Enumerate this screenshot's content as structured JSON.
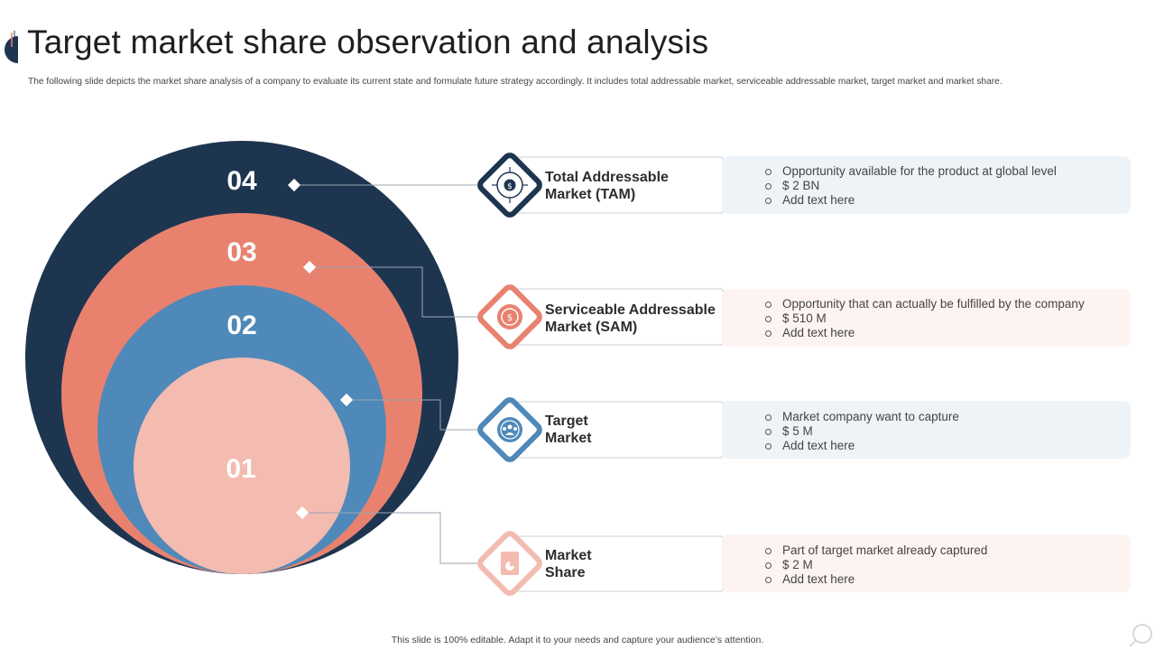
{
  "title": "Target market share observation and analysis",
  "subtitle": "The following slide depicts the market share analysis of a company to evaluate its current state and formulate future strategy accordingly. It includes total addressable market, serviceable addressable market, target market and market share.",
  "colors": {
    "dark_navy": "#1e3550",
    "coral": "#e8826f",
    "steel_blue": "#4f89b9",
    "light_pink": "#f4bbb1",
    "strip_blue": "#eef3f7",
    "strip_pink": "#fdf4f2"
  },
  "levels": [
    {
      "number": "04",
      "color": "#1e3550"
    },
    {
      "number": "03",
      "color": "#e8826f"
    },
    {
      "number": "02",
      "color": "#4f89b9"
    },
    {
      "number": "01",
      "color": "#f4bbb1"
    }
  ],
  "rows": [
    {
      "label_line1": "Total Addressable",
      "label_line2": "Market (TAM)",
      "icon": "dollar-network-icon",
      "bullets": [
        "Opportunity available  for the product at global level",
        "$ 2 BN",
        "Add text here"
      ]
    },
    {
      "label_line1": "Serviceable Addressable",
      "label_line2": "Market (SAM)",
      "icon": "coin-cycle-icon",
      "bullets": [
        "Opportunity that can actually be fulfilled  by the company",
        "$ 510 M",
        "Add text here"
      ]
    },
    {
      "label_line1": "Target",
      "label_line2": "Market",
      "icon": "target-people-icon",
      "bullets": [
        "Market company want to capture",
        "$ 5 M",
        "Add text here"
      ]
    },
    {
      "label_line1": "Market",
      "label_line2": "Share",
      "icon": "document-chart-icon",
      "bullets": [
        "Part of target market already  captured",
        "$ 2 M",
        "Add text here"
      ]
    }
  ],
  "footer": "This slide is 100% editable.  Adapt it to your needs and capture your audience’s attention."
}
